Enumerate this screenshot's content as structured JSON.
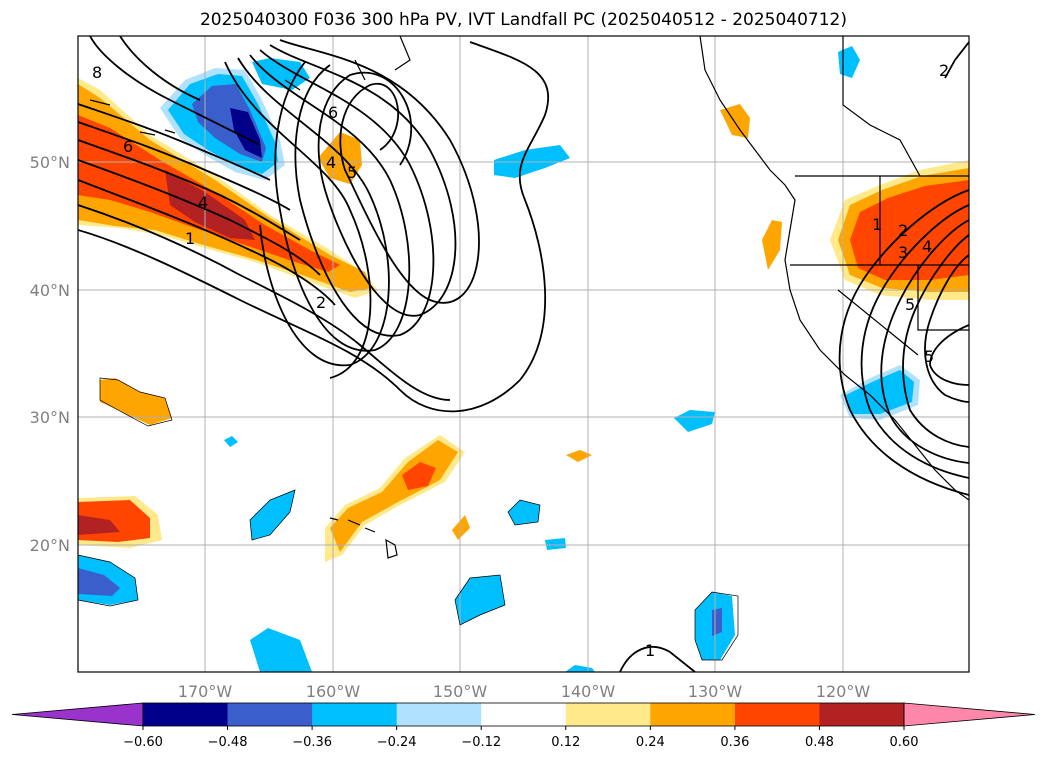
{
  "title": "2025040300 F036 300 hPa PV, IVT Landfall PC (2025040512 - 2025040712)",
  "map": {
    "lon_labels": [
      "170°W",
      "160°W",
      "150°W",
      "140°W",
      "130°W",
      "120°W"
    ],
    "lat_labels": [
      "50°N",
      "40°N",
      "30°N",
      "20°N"
    ],
    "contour_labels": [
      "8",
      "6",
      "4",
      "1",
      "2",
      "6",
      "4",
      "5",
      "2",
      "1",
      "2",
      "3",
      "4",
      "5",
      "5",
      "1"
    ]
  },
  "colorbar": {
    "ticks": [
      "−0.60",
      "−0.48",
      "−0.36",
      "−0.24",
      "−0.12",
      "0.12",
      "0.24",
      "0.36",
      "0.48",
      "0.60"
    ],
    "colors": [
      "#9933cc",
      "#00008b",
      "#3a5fcd",
      "#00bfff",
      "#b0e2ff",
      "#ffffff",
      "#ffe98a",
      "#ffa500",
      "#ff4500",
      "#b22222",
      "#ff88aa"
    ]
  }
}
